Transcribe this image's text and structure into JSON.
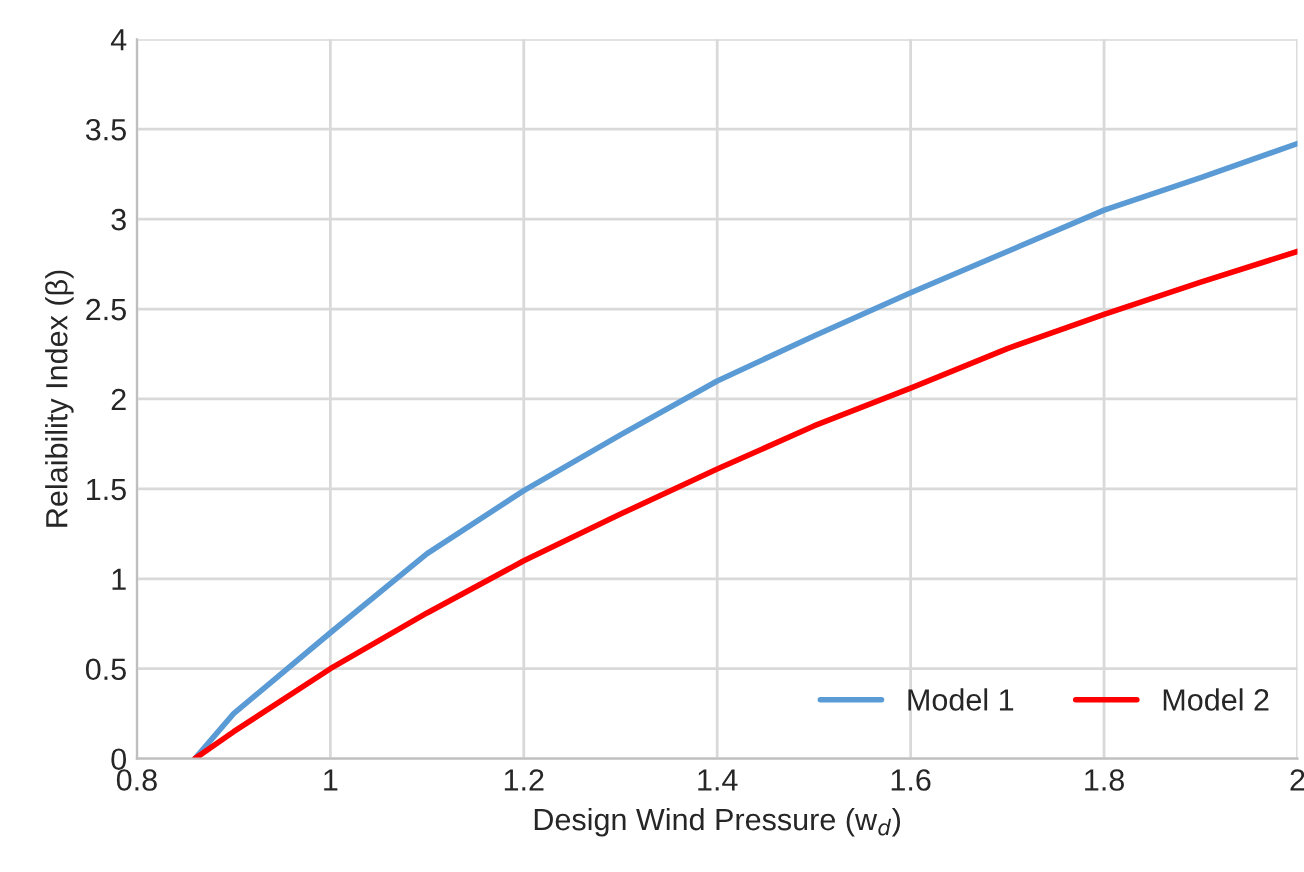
{
  "chart_data": {
    "type": "line",
    "xlabel": "Design Wind Pressure (w$_{d}$)",
    "ylabel": "Relaibility Index (β)",
    "series": [
      {
        "name": "Model 1",
        "color": "#5b9bd5",
        "x": [
          0.86,
          0.9,
          1.0,
          1.1,
          1.2,
          1.3,
          1.4,
          1.5,
          1.6,
          1.7,
          1.8,
          1.9,
          2.0
        ],
        "values": [
          0,
          0.25,
          0.7,
          1.14,
          1.49,
          1.8,
          2.1,
          2.35,
          2.59,
          2.82,
          3.05,
          3.23,
          3.42
        ]
      },
      {
        "name": "Model 2",
        "color": "#ff0000",
        "x": [
          0.86,
          0.9,
          1.0,
          1.1,
          1.2,
          1.3,
          1.4,
          1.5,
          1.6,
          1.7,
          1.8,
          1.9,
          2.0
        ],
        "values": [
          0,
          0.15,
          0.5,
          0.81,
          1.1,
          1.36,
          1.61,
          1.85,
          2.06,
          2.28,
          2.47,
          2.65,
          2.82
        ]
      }
    ],
    "xlim": [
      0.8,
      2
    ],
    "xticks": [
      0.8,
      1,
      1.2,
      1.4,
      1.6,
      1.8,
      2
    ],
    "ylim": [
      0,
      4
    ],
    "yticks": [
      0,
      0.5,
      1,
      1.5,
      2,
      2.5,
      3,
      3.5,
      4
    ],
    "grid": true,
    "legend": "lower right",
    "marker": "none",
    "line_style": "solid"
  }
}
